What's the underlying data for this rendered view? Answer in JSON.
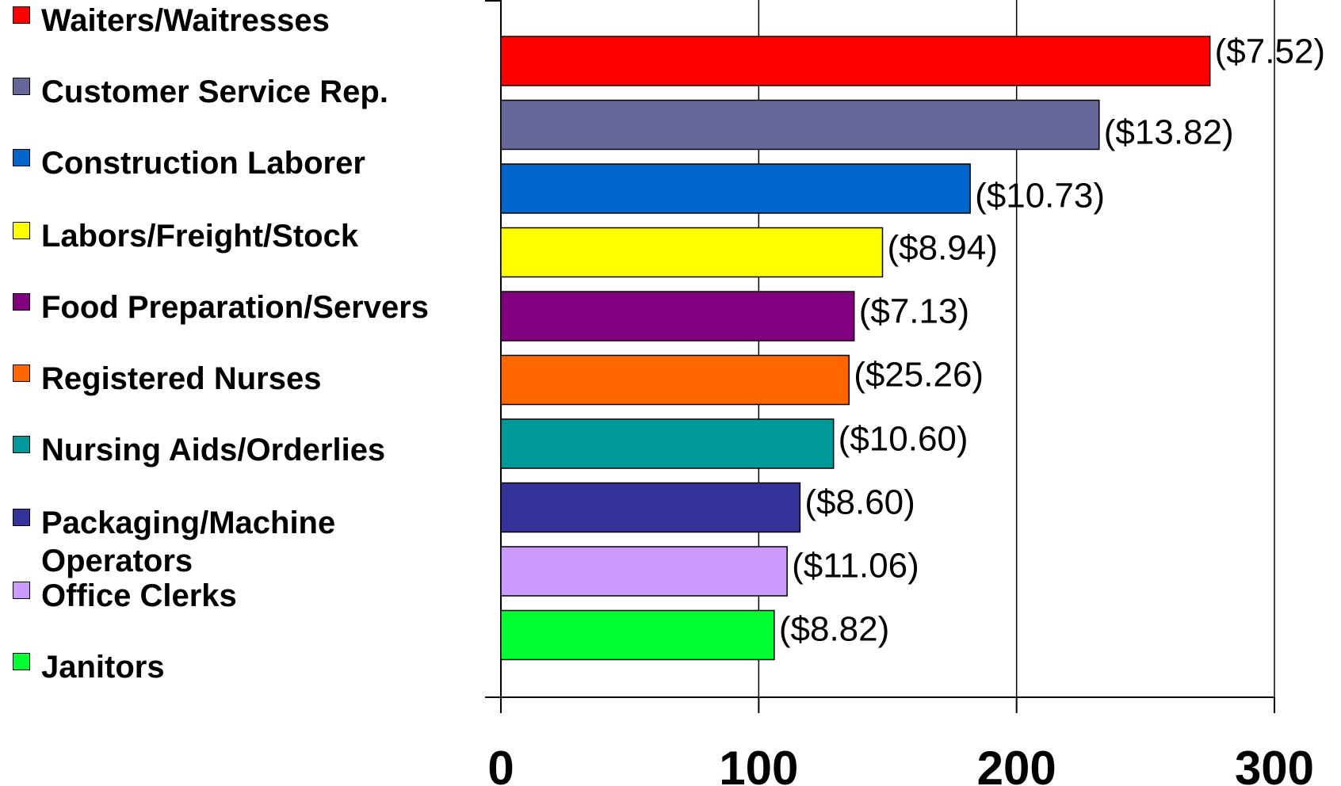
{
  "chart_data": {
    "type": "bar",
    "orientation": "horizontal",
    "categories": [
      "Waiters/Waitresses",
      "Customer Service Rep.",
      "Construction Laborer",
      "Labors/Freight/Stock",
      "Food Preparation/Servers",
      "Registered Nurses",
      "Nursing Aids/Orderlies",
      "Packaging/Machine Operators",
      "Office Clerks",
      "Janitors"
    ],
    "values": [
      275,
      232,
      182,
      148,
      137,
      135,
      129,
      116,
      111,
      106
    ],
    "data_labels": [
      "($7.52)",
      "($13.82)",
      "($10.73)",
      "($8.94)",
      "($7.13)",
      "($25.26)",
      "($10.60)",
      "($8.60)",
      "($11.06)",
      "($8.82)"
    ],
    "colors": [
      "#FF0000",
      "#666699",
      "#0066CC",
      "#FFFF00",
      "#800080",
      "#FF6600",
      "#009999",
      "#333399",
      "#CC99FF",
      "#00FF33"
    ],
    "xlim": [
      0,
      300
    ],
    "x_ticks": [
      "0",
      "100",
      "200",
      "300"
    ],
    "grid": true,
    "legend_position": "left",
    "title": "",
    "xlabel": "",
    "ylabel": ""
  }
}
